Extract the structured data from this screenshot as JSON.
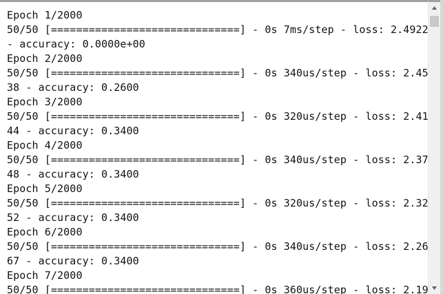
{
  "lines": [
    "Epoch 1/2000",
    "50/50 [==============================] - 0s 7ms/step - loss: 2.4922",
    "- accuracy: 0.0000e+00",
    "Epoch 2/2000",
    "50/50 [==============================] - 0s 340us/step - loss: 2.45",
    "38 - accuracy: 0.2600",
    "Epoch 3/2000",
    "50/50 [==============================] - 0s 320us/step - loss: 2.41",
    "44 - accuracy: 0.3400",
    "Epoch 4/2000",
    "50/50 [==============================] - 0s 340us/step - loss: 2.37",
    "48 - accuracy: 0.3400",
    "Epoch 5/2000",
    "50/50 [==============================] - 0s 320us/step - loss: 2.32",
    "52 - accuracy: 0.3400",
    "Epoch 6/2000",
    "50/50 [==============================] - 0s 340us/step - loss: 2.26",
    "67 - accuracy: 0.3400",
    "Epoch 7/2000",
    "50/50 [==============================] - 0s 360us/step - loss: 2.19"
  ]
}
